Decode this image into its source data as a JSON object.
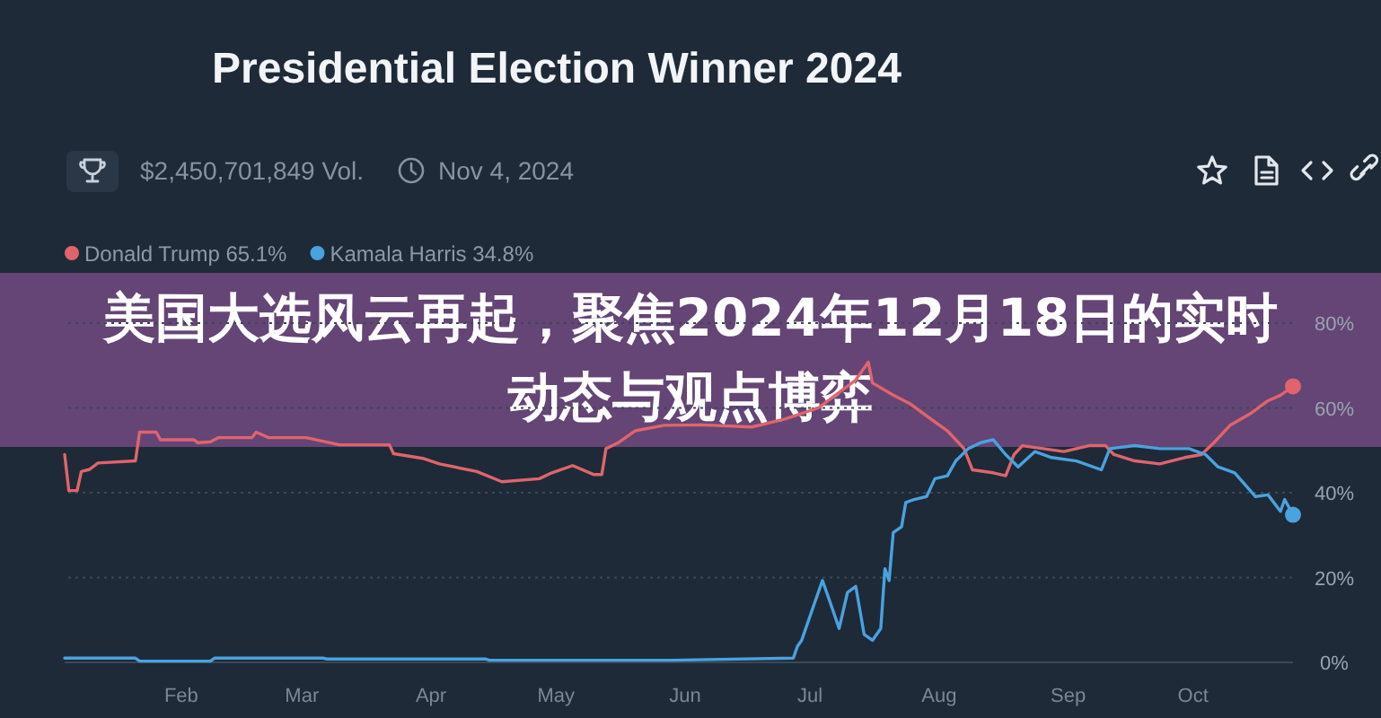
{
  "chart_data": {
    "type": "line",
    "title": "Presidential Election Winner 2024",
    "subtitle": "美国大选风云再起，聚焦2024年12月18日的实时动态与观点博弈",
    "annotations": [
      "$2,450,701,849 Vol.",
      "Nov 4, 2024"
    ],
    "xlim": [
      "2024-01-04",
      "2024-10-25"
    ],
    "xticks": [
      {
        "value": "2024-02-01",
        "label": "Feb"
      },
      {
        "value": "2024-03-01",
        "label": "Mar"
      },
      {
        "value": "2024-04-01",
        "label": "Apr"
      },
      {
        "value": "2024-05-01",
        "label": "May"
      },
      {
        "value": "2024-06-01",
        "label": "Jun"
      },
      {
        "value": "2024-07-01",
        "label": "Jul"
      },
      {
        "value": "2024-08-01",
        "label": "Aug"
      },
      {
        "value": "2024-09-01",
        "label": "Sep"
      },
      {
        "value": "2024-10-01",
        "label": "Oct"
      }
    ],
    "ylim": [
      0,
      80
    ],
    "yticks": [
      {
        "value": 0,
        "label": "0%"
      },
      {
        "value": 20,
        "label": "20%"
      },
      {
        "value": 40,
        "label": "40%"
      },
      {
        "value": 60,
        "label": "60%"
      },
      {
        "value": 80,
        "label": "80%"
      }
    ],
    "grid": "y",
    "legend": "top left",
    "line_style": "solid",
    "series": [
      {
        "name": "Donald Trump 65.1%",
        "color": "#e0646d",
        "x": [
          "2024-01-04",
          "2024-01-05",
          "2024-01-07",
          "2024-01-08",
          "2024-01-10",
          "2024-01-12",
          "2024-01-21",
          "2024-01-22",
          "2024-01-26",
          "2024-01-27",
          "2024-02-04",
          "2024-02-05",
          "2024-02-08",
          "2024-02-10",
          "2024-02-18",
          "2024-02-19",
          "2024-02-22",
          "2024-03-02",
          "2024-03-10",
          "2024-03-22",
          "2024-03-23",
          "2024-03-30",
          "2024-04-03",
          "2024-04-12",
          "2024-04-18",
          "2024-04-27",
          "2024-04-30",
          "2024-05-05",
          "2024-05-10",
          "2024-05-12",
          "2024-05-13",
          "2024-05-16",
          "2024-05-20",
          "2024-05-27",
          "2024-06-05",
          "2024-06-17",
          "2024-06-25",
          "2024-07-03",
          "2024-07-12",
          "2024-07-15",
          "2024-07-16",
          "2024-07-21",
          "2024-07-25",
          "2024-07-29",
          "2024-08-03",
          "2024-08-07",
          "2024-08-09",
          "2024-08-14",
          "2024-08-17",
          "2024-08-19",
          "2024-08-21",
          "2024-08-26",
          "2024-08-31",
          "2024-09-06",
          "2024-09-10",
          "2024-09-12",
          "2024-09-17",
          "2024-09-23",
          "2024-09-29",
          "2024-10-03",
          "2024-10-06",
          "2024-10-10",
          "2024-10-15",
          "2024-10-19",
          "2024-10-22",
          "2024-10-25"
        ],
        "values": [
          49,
          40.5,
          40.5,
          45,
          45.5,
          47,
          47.5,
          54.3,
          54.3,
          52.5,
          52.5,
          51.8,
          52,
          53,
          53,
          54.3,
          53,
          53,
          51.3,
          51.3,
          49.2,
          48.1,
          46.8,
          45,
          42.6,
          43.3,
          44.7,
          46.4,
          44.3,
          44.3,
          50.4,
          51.8,
          54.6,
          55.9,
          56,
          55.5,
          57.4,
          60,
          66.6,
          70.8,
          65.9,
          63,
          61,
          58.1,
          54.6,
          50.4,
          45.4,
          44.7,
          44,
          49,
          51.1,
          50.4,
          49.7,
          51.1,
          51.1,
          49,
          47.5,
          46.8,
          48.3,
          49,
          51.8,
          56,
          58.8,
          61.7,
          63,
          65.1
        ]
      },
      {
        "name": "Kamala Harris 34.8%",
        "color": "#4aa2df",
        "x": [
          "2024-01-04",
          "2024-01-21",
          "2024-01-22",
          "2024-02-08",
          "2024-02-09",
          "2024-03-06",
          "2024-03-07",
          "2024-04-14",
          "2024-04-15",
          "2024-05-29",
          "2024-06-27",
          "2024-06-28",
          "2024-06-29",
          "2024-07-02",
          "2024-07-04",
          "2024-07-06",
          "2024-07-08",
          "2024-07-10",
          "2024-07-12",
          "2024-07-14",
          "2024-07-16",
          "2024-07-18",
          "2024-07-19",
          "2024-07-20",
          "2024-07-21",
          "2024-07-23",
          "2024-07-24",
          "2024-07-26",
          "2024-07-29",
          "2024-07-31",
          "2024-08-03",
          "2024-08-05",
          "2024-08-08",
          "2024-08-11",
          "2024-08-14",
          "2024-08-17",
          "2024-08-20",
          "2024-08-24",
          "2024-08-28",
          "2024-09-03",
          "2024-09-09",
          "2024-09-11",
          "2024-09-17",
          "2024-09-23",
          "2024-09-30",
          "2024-10-04",
          "2024-10-07",
          "2024-10-11",
          "2024-10-16",
          "2024-10-19",
          "2024-10-22",
          "2024-10-23",
          "2024-10-25"
        ],
        "values": [
          1,
          1,
          0.3,
          0.3,
          1,
          1,
          0.8,
          0.8,
          0.5,
          0.5,
          1,
          3.8,
          5.2,
          13.7,
          19.3,
          13.7,
          8,
          16.5,
          17.9,
          6.6,
          5.2,
          8,
          22.1,
          19.3,
          30.6,
          32,
          37.7,
          38.4,
          39.1,
          43.3,
          44,
          47.5,
          50.4,
          51.8,
          52.5,
          49,
          46.1,
          49.7,
          48.3,
          47.5,
          45.4,
          50.4,
          51.1,
          50.4,
          50.4,
          49,
          46.1,
          44.7,
          39.1,
          39.5,
          35.6,
          38.4,
          34.8
        ]
      }
    ]
  }
}
